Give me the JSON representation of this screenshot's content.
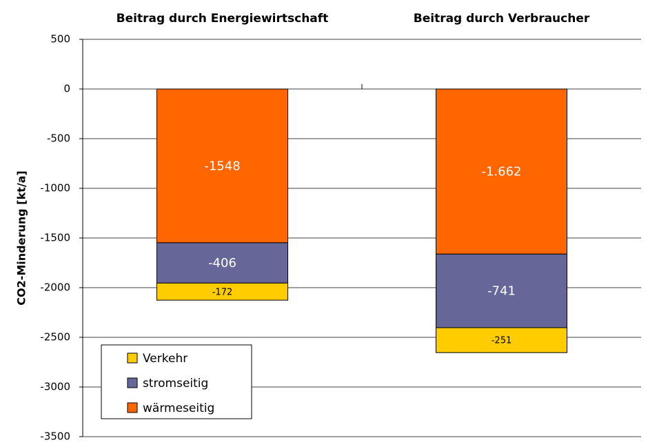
{
  "chart_data": {
    "type": "stacked_bar",
    "categories": [
      "Beitrag durch Energiewirtschaft",
      "Beitrag durch Verbraucher"
    ],
    "y_label": "CO2-Minderung [kt/a]",
    "series": [
      {
        "name": "wärmeseitig",
        "color": "#ff6600",
        "values": [
          -1548,
          -1662
        ],
        "value_labels": [
          "-1548",
          "-1.662"
        ]
      },
      {
        "name": "stromseitig",
        "color": "#666699",
        "values": [
          -406,
          -741
        ]
      },
      {
        "name": "Verkehr",
        "color": "#ffcc00",
        "values": [
          -172,
          -251
        ]
      }
    ],
    "ylim": [
      -3500,
      500
    ],
    "yticks": [
      -3500,
      -3000,
      -2500,
      -2000,
      -1500,
      -1000,
      -500,
      0,
      500
    ],
    "grid": true,
    "legend": "lower left"
  }
}
